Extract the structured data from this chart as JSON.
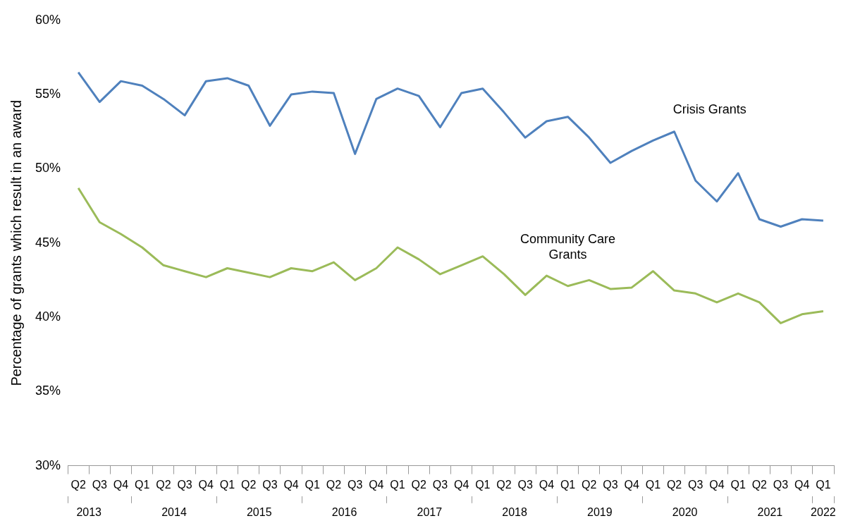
{
  "chart_data": {
    "type": "line",
    "ylabel": "Percentage of grants which result in an award",
    "categories": [
      "Q2",
      "Q3",
      "Q4",
      "Q1",
      "Q2",
      "Q3",
      "Q4",
      "Q1",
      "Q2",
      "Q3",
      "Q4",
      "Q1",
      "Q2",
      "Q3",
      "Q4",
      "Q1",
      "Q2",
      "Q3",
      "Q4",
      "Q1",
      "Q2",
      "Q3",
      "Q4",
      "Q1",
      "Q2",
      "Q3",
      "Q4",
      "Q1",
      "Q2",
      "Q3",
      "Q4",
      "Q1",
      "Q2",
      "Q3",
      "Q4",
      "Q1"
    ],
    "series": [
      {
        "name": "Crisis Grants",
        "color": "#4f81bd",
        "values": [
          56.5,
          54.5,
          55.9,
          55.6,
          54.7,
          53.6,
          55.9,
          56.1,
          55.6,
          52.9,
          55.0,
          55.2,
          55.1,
          51.0,
          54.7,
          55.4,
          54.9,
          52.8,
          55.1,
          55.4,
          53.8,
          52.1,
          53.2,
          53.5,
          52.1,
          50.4,
          51.2,
          51.9,
          52.5,
          49.2,
          47.8,
          49.7,
          46.6,
          46.1,
          46.6,
          46.5
        ]
      },
      {
        "name": "Community Care Grants",
        "color": "#9bbb59",
        "values": [
          48.7,
          46.4,
          45.6,
          44.7,
          43.5,
          43.1,
          42.7,
          43.3,
          43.0,
          42.7,
          43.3,
          43.1,
          43.7,
          42.5,
          43.3,
          44.7,
          43.9,
          42.9,
          43.5,
          44.1,
          42.9,
          41.5,
          42.8,
          42.1,
          42.5,
          41.9,
          42.0,
          43.1,
          41.8,
          41.6,
          41.0,
          41.6,
          41.0,
          39.6,
          40.2,
          40.4
        ]
      }
    ],
    "ylim": [
      30,
      60
    ],
    "yticks": [
      {
        "value": 30,
        "label": "30%"
      },
      {
        "value": 35,
        "label": "35%"
      },
      {
        "value": 40,
        "label": "40%"
      },
      {
        "value": 45,
        "label": "45%"
      },
      {
        "value": 50,
        "label": "50%"
      },
      {
        "value": 55,
        "label": "55%"
      },
      {
        "value": 60,
        "label": "60%"
      }
    ],
    "x2lim": [
      2013.25,
      2022.25
    ],
    "x2ticks": [
      {
        "value": 2013.25,
        "label": null
      },
      {
        "value": 2013.5,
        "label": "2013"
      },
      {
        "value": 2014,
        "label": null
      },
      {
        "value": 2014.5,
        "label": "2014"
      },
      {
        "value": 2015,
        "label": null
      },
      {
        "value": 2015.5,
        "label": "2015"
      },
      {
        "value": 2016,
        "label": null
      },
      {
        "value": 2016.5,
        "label": "2016"
      },
      {
        "value": 2017,
        "label": null
      },
      {
        "value": 2017.5,
        "label": "2017"
      },
      {
        "value": 2018,
        "label": null
      },
      {
        "value": 2018.5,
        "label": "2018"
      },
      {
        "value": 2019,
        "label": null
      },
      {
        "value": 2019.5,
        "label": "2019"
      },
      {
        "value": 2020,
        "label": null
      },
      {
        "value": 2020.5,
        "label": "2020"
      },
      {
        "value": 2021,
        "label": null
      },
      {
        "value": 2021.5,
        "label": "2021"
      },
      {
        "value": 2022,
        "label": null
      },
      {
        "value": 2022.125,
        "label": "2022"
      },
      {
        "value": 2022.25,
        "label": null
      }
    ],
    "marker": "none",
    "line_style": "solid"
  }
}
